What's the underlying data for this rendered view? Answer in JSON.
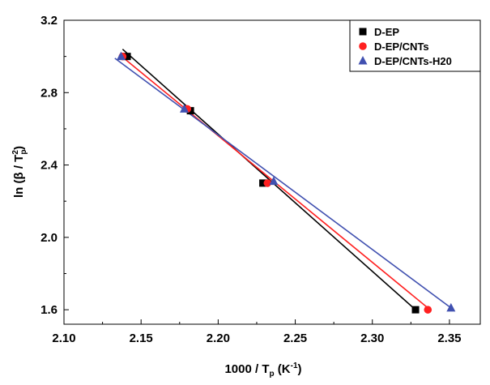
{
  "chart_data": {
    "type": "scatter",
    "xlabel_prefix": "1000 / T",
    "xlabel_sub": "p",
    "xlabel_suffix": " (K",
    "xlabel_sup": "-1",
    "xlabel_close": ")",
    "ylabel_prefix": "ln (β / T",
    "ylabel_sub": "p",
    "ylabel_sup": "2",
    "ylabel_close": ")",
    "xlim": [
      2.1,
      2.37
    ],
    "ylim": [
      1.52,
      3.2
    ],
    "xticks": [
      2.1,
      2.15,
      2.2,
      2.25,
      2.3,
      2.35
    ],
    "xtick_labels": [
      "2.10",
      "2.15",
      "2.20",
      "2.25",
      "2.30",
      "2.35"
    ],
    "yticks": [
      1.6,
      2.0,
      2.4,
      2.8,
      3.2
    ],
    "ytick_labels": [
      "1.6",
      "2.0",
      "2.4",
      "2.8",
      "3.2"
    ],
    "legend_position": "top-right",
    "series": [
      {
        "name": "D-EP",
        "marker": "square",
        "color": "#000000",
        "x": [
          2.141,
          2.182,
          2.229,
          2.328
        ],
        "y": [
          3.0,
          2.7,
          2.3,
          1.6
        ],
        "fit": {
          "x": [
            2.138,
            2.328
          ],
          "y": [
            3.04,
            1.6
          ]
        }
      },
      {
        "name": "D-EP/CNTs",
        "marker": "circle",
        "color": "#ff2020",
        "x": [
          2.138,
          2.18,
          2.232,
          2.336
        ],
        "y": [
          3.0,
          2.71,
          2.3,
          1.6
        ],
        "fit": {
          "x": [
            2.136,
            2.336
          ],
          "y": [
            3.01,
            1.61
          ]
        }
      },
      {
        "name": "D-EP/CNTs-H20",
        "marker": "triangle",
        "color": "#4050b0",
        "x": [
          2.137,
          2.178,
          2.236,
          2.351
        ],
        "y": [
          3.0,
          2.71,
          2.31,
          1.61
        ],
        "fit": {
          "x": [
            2.133,
            2.351
          ],
          "y": [
            2.99,
            1.61
          ]
        }
      }
    ]
  }
}
